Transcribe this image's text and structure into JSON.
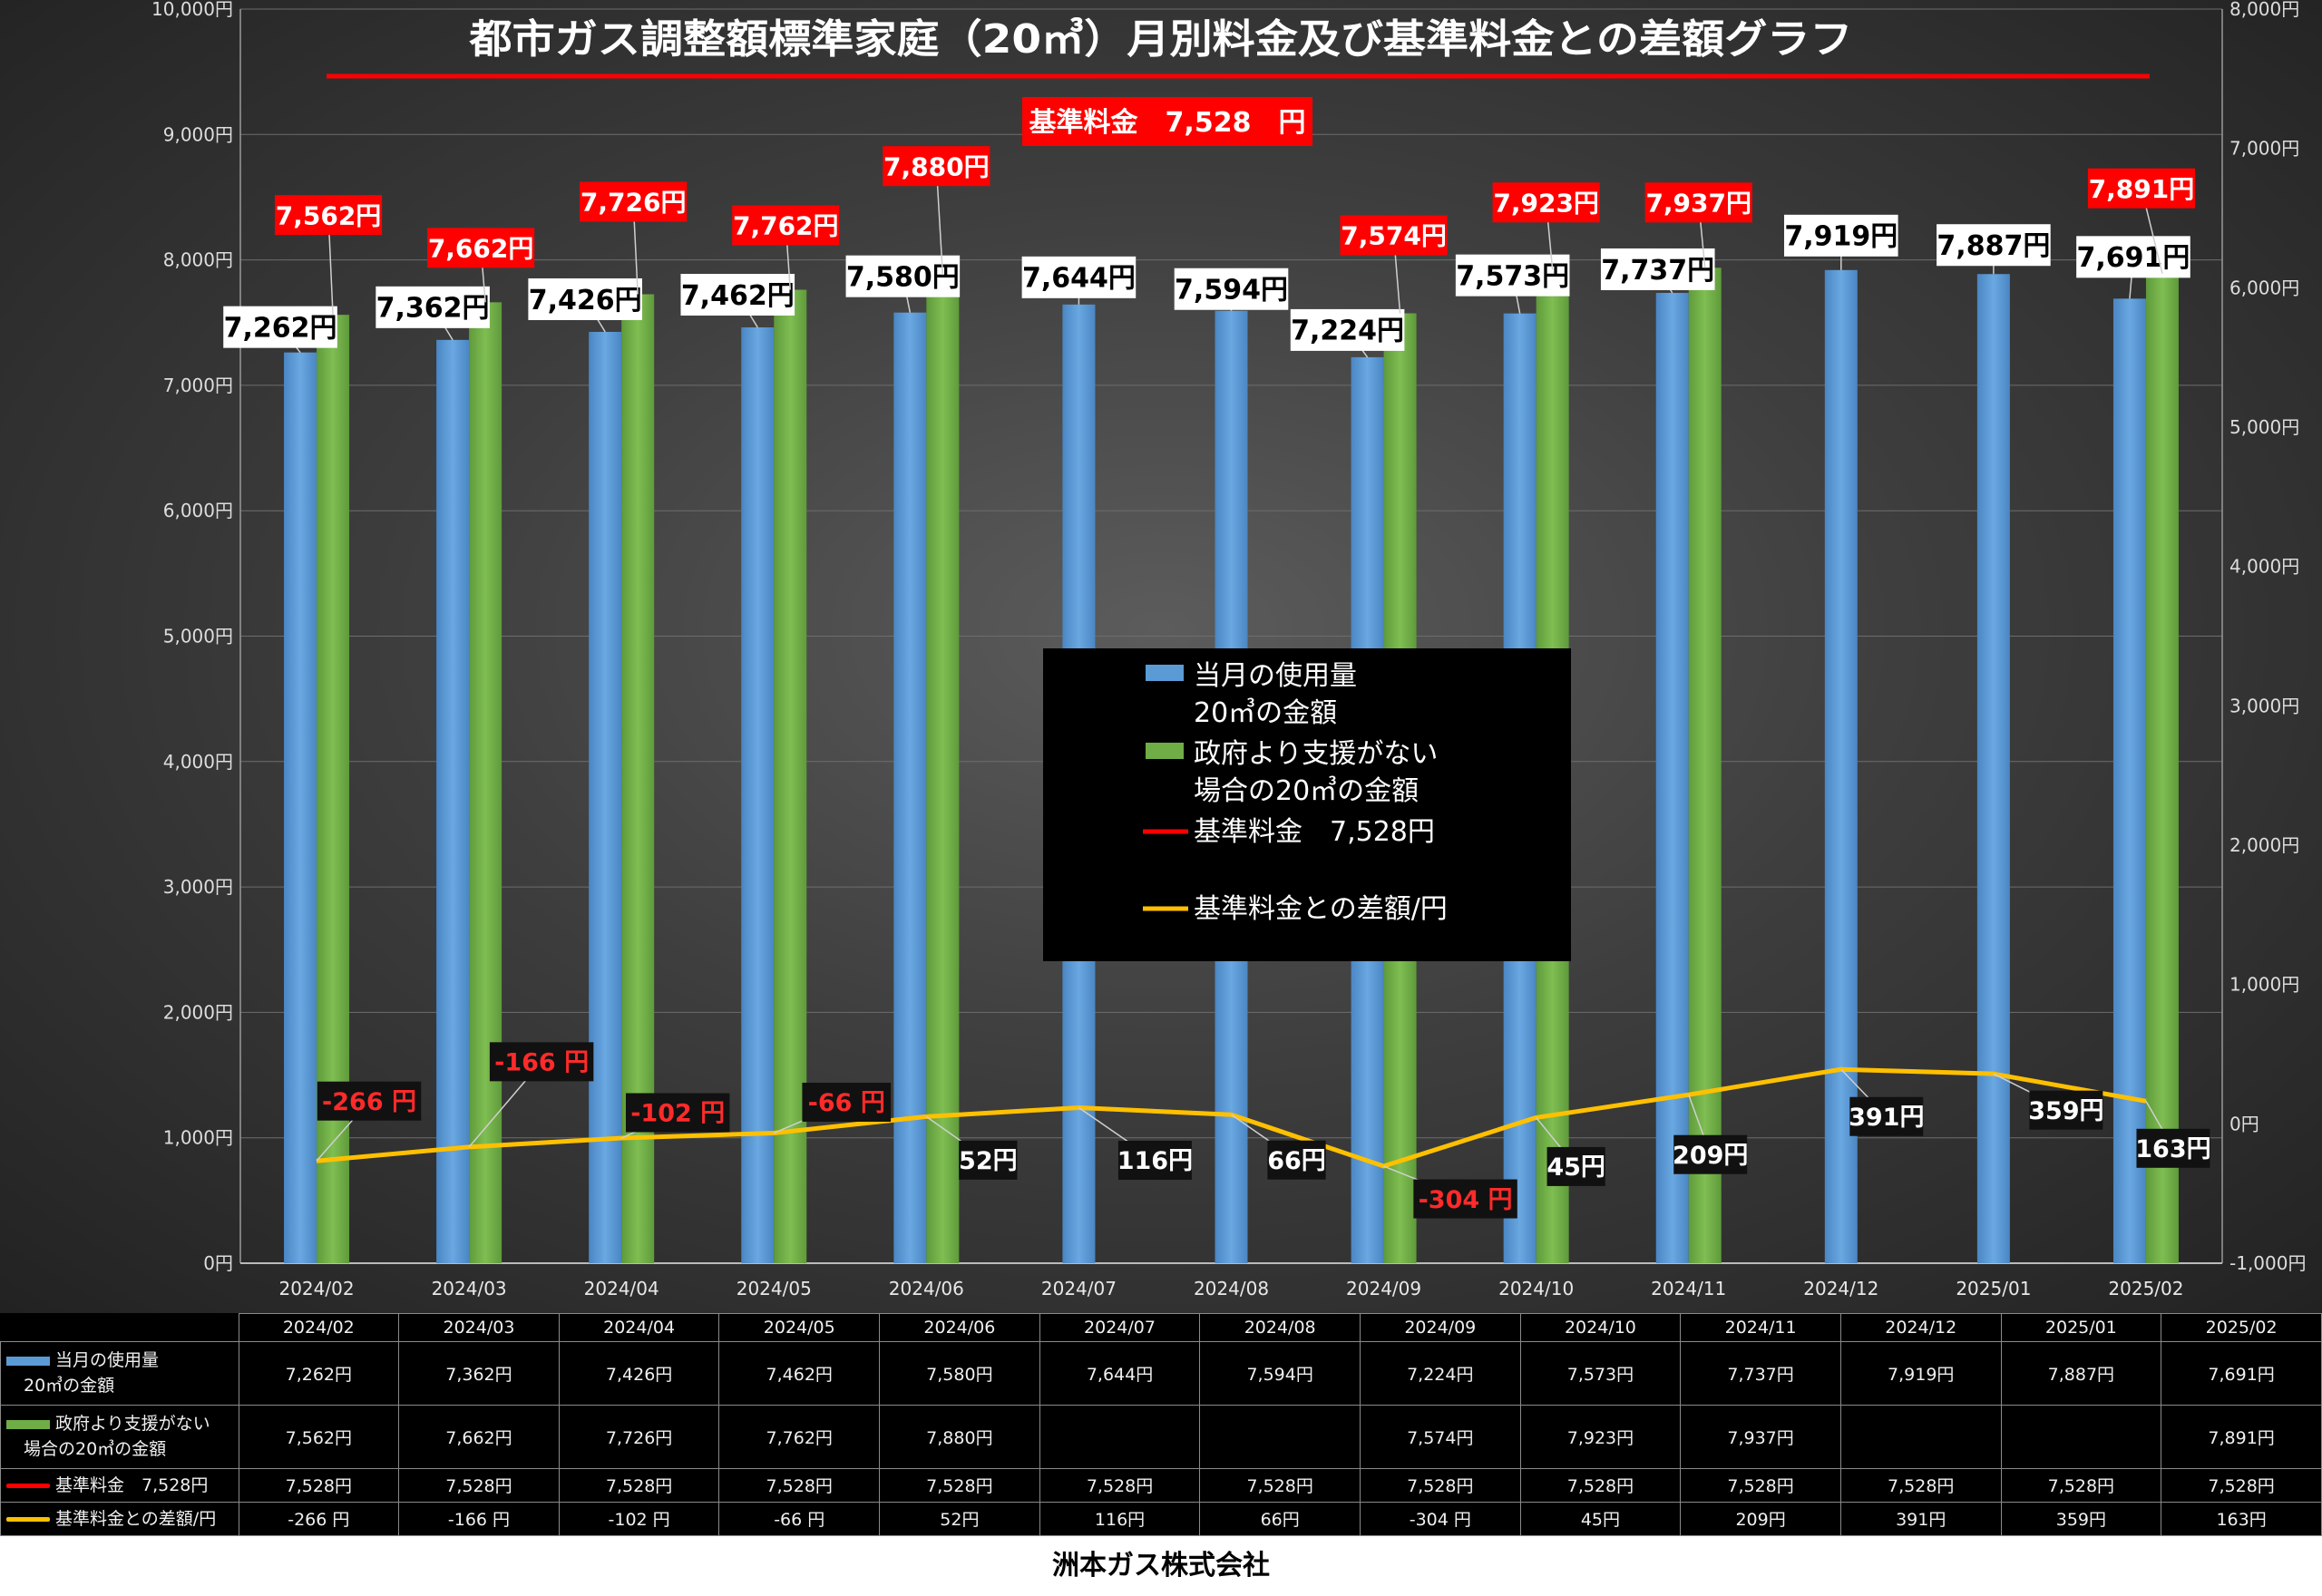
{
  "chart_data": {
    "type": "bar",
    "title": "都市ガス調整額標準家庭（20㎥）月別料金及び基準料金との差額グラフ",
    "base_label": "基準料金　7,528　円",
    "categories": [
      "2024/02",
      "2024/03",
      "2024/04",
      "2024/05",
      "2024/06",
      "2024/07",
      "2024/08",
      "2024/09",
      "2024/10",
      "2024/11",
      "2024/12",
      "2025/01",
      "2025/02"
    ],
    "series": [
      {
        "name": "当月の使用量20㎥の金額",
        "axis": "left",
        "kind": "bar",
        "color": "#5b9bd5",
        "values": [
          7262,
          7362,
          7426,
          7462,
          7580,
          7644,
          7594,
          7224,
          7573,
          7737,
          7919,
          7887,
          7691
        ],
        "labels": [
          "7,262円",
          "7,362円",
          "7,426円",
          "7,462円",
          "7,580円",
          "7,644円",
          "7,594円",
          "7,224円",
          "7,573円",
          "7,737円",
          "7,919円",
          "7,887円",
          "7,691円"
        ]
      },
      {
        "name": "政府より支援がない場合の20㎥の金額",
        "axis": "left",
        "kind": "bar",
        "color": "#70ad47",
        "values": [
          7562,
          7662,
          7726,
          7762,
          7880,
          null,
          null,
          7574,
          7923,
          7937,
          null,
          null,
          7891
        ],
        "labels": [
          "7,562円",
          "7,662円",
          "7,726円",
          "7,762円",
          "7,880円",
          "",
          "",
          "7,574円",
          "7,923円",
          "7,937円",
          "",
          "",
          "7,891円"
        ]
      },
      {
        "name": "基準料金　7,528円",
        "axis": "left",
        "kind": "line",
        "color": "#ff0000",
        "values": [
          7528,
          7528,
          7528,
          7528,
          7528,
          7528,
          7528,
          7528,
          7528,
          7528,
          7528,
          7528,
          7528
        ]
      },
      {
        "name": "基準料金との差額/円",
        "axis": "right",
        "kind": "line",
        "color": "#ffc000",
        "values": [
          -266,
          -166,
          -102,
          -66,
          52,
          116,
          66,
          -304,
          45,
          209,
          391,
          359,
          163
        ],
        "labels": [
          "-266 円",
          "-166 円",
          "-102 円",
          "-66 円",
          "52円",
          "116円",
          "66円",
          "-304 円",
          "45円",
          "209円",
          "391円",
          "359円",
          "163円"
        ]
      }
    ],
    "y_left": {
      "min": 0,
      "max": 10000,
      "step": 1000,
      "ticks": [
        "0円",
        "1,000円",
        "2,000円",
        "3,000円",
        "4,000円",
        "5,000円",
        "6,000円",
        "7,000円",
        "8,000円",
        "9,000円",
        "10,000円"
      ]
    },
    "y_right": {
      "min": -1000,
      "max": 8000,
      "step": 1000,
      "ticks": [
        "-1,000円",
        "0円",
        "1,000円",
        "2,000円",
        "3,000円",
        "4,000円",
        "5,000円",
        "6,000円",
        "7,000円",
        "8,000円"
      ]
    },
    "legend": {
      "position": "center",
      "items": [
        {
          "lines": [
            "当月の使用量",
            "20㎥の金額"
          ],
          "kind": "bar",
          "color": "#5b9bd5"
        },
        {
          "lines": [
            "政府より支援がない",
            "場合の20㎥の金額"
          ],
          "kind": "bar",
          "color": "#70ad47"
        },
        {
          "lines": [
            "基準料金　7,528円"
          ],
          "kind": "line",
          "color": "#ff0000"
        },
        {
          "lines": [
            "基準料金との差額/円"
          ],
          "kind": "line",
          "color": "#ffc000"
        }
      ]
    }
  },
  "table": {
    "columns": [
      "2024/02",
      "2024/03",
      "2024/04",
      "2024/05",
      "2024/06",
      "2024/07",
      "2024/08",
      "2024/09",
      "2024/10",
      "2024/11",
      "2024/12",
      "2025/01",
      "2025/02"
    ],
    "rows": [
      {
        "label_lines": [
          "当月の使用量",
          "　20㎥の金額"
        ],
        "kind": "bar",
        "color": "#5b9bd5",
        "cells": [
          "7,262円",
          "7,362円",
          "7,426円",
          "7,462円",
          "7,580円",
          "7,644円",
          "7,594円",
          "7,224円",
          "7,573円",
          "7,737円",
          "7,919円",
          "7,887円",
          "7,691円"
        ]
      },
      {
        "label_lines": [
          "政府より支援がない",
          "　場合の20㎥の金額"
        ],
        "kind": "bar",
        "color": "#70ad47",
        "cells": [
          "7,562円",
          "7,662円",
          "7,726円",
          "7,762円",
          "7,880円",
          "",
          "",
          "7,574円",
          "7,923円",
          "7,937円",
          "",
          "",
          "7,891円"
        ]
      },
      {
        "label_lines": [
          "基準料金　7,528円"
        ],
        "kind": "line",
        "color": "#ff0000",
        "cells": [
          "7,528円",
          "7,528円",
          "7,528円",
          "7,528円",
          "7,528円",
          "7,528円",
          "7,528円",
          "7,528円",
          "7,528円",
          "7,528円",
          "7,528円",
          "7,528円",
          "7,528円"
        ]
      },
      {
        "label_lines": [
          "基準料金との差額/円"
        ],
        "kind": "line",
        "color": "#ffc000",
        "cells": [
          "-266 円",
          "-166 円",
          "-102 円",
          "-66 円",
          "52円",
          "116円",
          "66円",
          "-304 円",
          "45円",
          "209円",
          "391円",
          "359円",
          "163円"
        ]
      }
    ]
  },
  "footer": {
    "company": "洲本ガス株式会社"
  }
}
